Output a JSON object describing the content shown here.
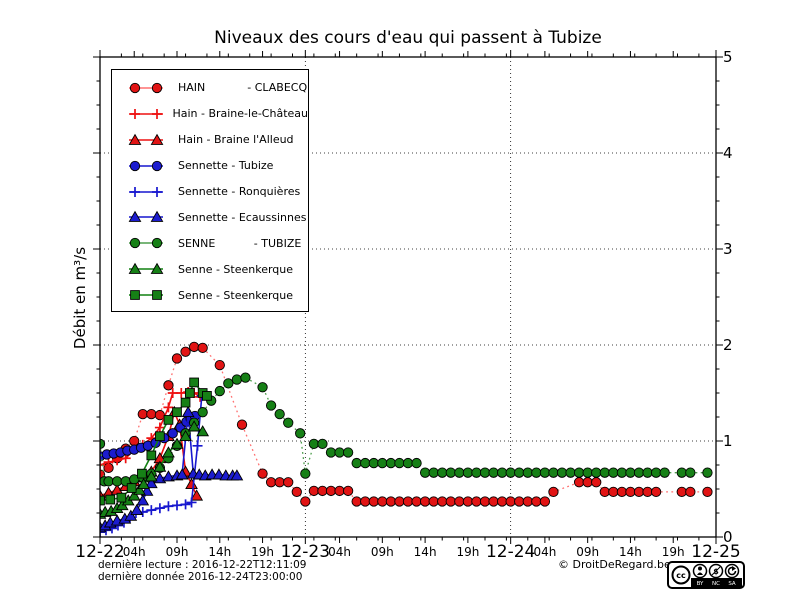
{
  "title": "Niveaux des cours d'eau qui passent à Tubize",
  "ylabel": "Débit en m³/s",
  "footer": {
    "line1": "dernière lecture : 2016-12-22T12:11:09",
    "line2": "dernière donnée  2016-12-24T23:00:00",
    "copyright": "© DroitDeRegard.be",
    "license_icons": [
      "cc-icon",
      "by-person-icon",
      "nc-dollar-icon",
      "sa-arrow-icon"
    ],
    "license_labels": [
      "BY",
      "NC",
      "SA"
    ]
  },
  "colors": {
    "axis": "#000000",
    "grid": "#000000",
    "red_marker": "#e11414",
    "red_line": "#ee1111",
    "red_dotted": "#ff7070",
    "blue_marker": "#1c1ccf",
    "blue_line": "#1717cf",
    "green_marker": "#168016",
    "green_line": "#118011",
    "green_dotted": "#4d9e4d"
  },
  "chart_data": {
    "type": "line",
    "title": "Niveaux des cours d'eau qui passent à Tubize",
    "xlabel": "",
    "ylabel": "Débit en m³/s",
    "x_unit": "hours since 2016-12-22T00:00",
    "xlim": [
      0,
      72
    ],
    "ylim": [
      0,
      5
    ],
    "grid": "dotted",
    "x_gridlines_t": [
      24,
      48
    ],
    "y_gridlines": [
      1,
      2,
      3,
      4
    ],
    "y_ticks": [
      0,
      1,
      2,
      3,
      4,
      5
    ],
    "y_tick_labels": [
      "0",
      "1",
      "2",
      "3",
      "4",
      "5"
    ],
    "y_axis_side": "right",
    "legend_position": "upper-left",
    "day_labels": [
      {
        "t": 0,
        "label": "12-22"
      },
      {
        "t": 24,
        "label": "12-23"
      },
      {
        "t": 48,
        "label": "12-24"
      },
      {
        "t": 72,
        "label": "12-25"
      }
    ],
    "hour_labels": [
      {
        "t": 4,
        "label": "04h"
      },
      {
        "t": 9,
        "label": "09h"
      },
      {
        "t": 14,
        "label": "14h"
      },
      {
        "t": 19,
        "label": "19h"
      },
      {
        "t": 28,
        "label": "04h"
      },
      {
        "t": 33,
        "label": "09h"
      },
      {
        "t": 38,
        "label": "14h"
      },
      {
        "t": 43,
        "label": "19h"
      },
      {
        "t": 52,
        "label": "04h"
      },
      {
        "t": 57,
        "label": "09h"
      },
      {
        "t": 62,
        "label": "14h"
      },
      {
        "t": 67,
        "label": "19h"
      }
    ],
    "series": [
      {
        "name": "HAIN            - CLABECQ",
        "station": "Hain à Clabecq",
        "marker": "circle",
        "marker_color": "#e11414",
        "line_style": "dotted",
        "line_color": "#ff7070",
        "points": [
          [
            0,
            0.65
          ],
          [
            1,
            0.72
          ],
          [
            2,
            0.82
          ],
          [
            3,
            0.92
          ],
          [
            4,
            1.0
          ],
          [
            5,
            1.28
          ],
          [
            6,
            1.28
          ],
          [
            7,
            1.27
          ],
          [
            8,
            1.58
          ],
          [
            9,
            1.86
          ],
          [
            10,
            1.93
          ],
          [
            11,
            1.98
          ],
          [
            12,
            1.97
          ],
          [
            14,
            1.79
          ],
          [
            16.6,
            1.17
          ],
          [
            19,
            0.66
          ],
          [
            20,
            0.57
          ],
          [
            21,
            0.57
          ],
          [
            22,
            0.57
          ],
          [
            23,
            0.47
          ],
          [
            24,
            0.37
          ],
          [
            25,
            0.48
          ],
          [
            26,
            0.48
          ],
          [
            27,
            0.48
          ],
          [
            28,
            0.48
          ],
          [
            29,
            0.48
          ],
          [
            30,
            0.37
          ],
          [
            31,
            0.37
          ],
          [
            32,
            0.37
          ],
          [
            33,
            0.37
          ],
          [
            34,
            0.37
          ],
          [
            35,
            0.37
          ],
          [
            36,
            0.37
          ],
          [
            37,
            0.37
          ],
          [
            38,
            0.37
          ],
          [
            39,
            0.37
          ],
          [
            40,
            0.37
          ],
          [
            41,
            0.37
          ],
          [
            42,
            0.37
          ],
          [
            43,
            0.37
          ],
          [
            44,
            0.37
          ],
          [
            45,
            0.37
          ],
          [
            46,
            0.37
          ],
          [
            47,
            0.37
          ],
          [
            48,
            0.37
          ],
          [
            49,
            0.37
          ],
          [
            50,
            0.37
          ],
          [
            51,
            0.37
          ],
          [
            52,
            0.37
          ],
          [
            53,
            0.47
          ],
          [
            56,
            0.57
          ],
          [
            57,
            0.57
          ],
          [
            58,
            0.57
          ],
          [
            59,
            0.47
          ],
          [
            60,
            0.47
          ],
          [
            61,
            0.47
          ],
          [
            62,
            0.47
          ],
          [
            63,
            0.47
          ],
          [
            64,
            0.47
          ],
          [
            65,
            0.47
          ],
          [
            68,
            0.47
          ],
          [
            69,
            0.47
          ],
          [
            71,
            0.47
          ]
        ]
      },
      {
        "name": "Hain - Braine-le-Château",
        "station": "Hain à Braine-le-Château",
        "marker": "plus",
        "marker_color": "#ee1111",
        "line_style": "solid",
        "line_color": "#ee1111",
        "points": [
          [
            0,
            0.75
          ],
          [
            1,
            0.78
          ],
          [
            2,
            0.8
          ],
          [
            3,
            0.82
          ],
          [
            4,
            0.91
          ],
          [
            5,
            0.96
          ],
          [
            6,
            1.03
          ],
          [
            7,
            1.14
          ],
          [
            8,
            1.35
          ],
          [
            8.5,
            1.5
          ],
          [
            9.5,
            1.5
          ],
          [
            10.3,
            1.51
          ],
          [
            11,
            1.5
          ],
          [
            11.7,
            1.46
          ]
        ]
      },
      {
        "name": "Hain - Braine l'Alleud",
        "station": "Hain à Braine l'Alleud",
        "marker": "triangle",
        "marker_color": "#e11414",
        "line_style": "solid",
        "line_color": "#ee1111",
        "points": [
          [
            0,
            0.43
          ],
          [
            1,
            0.46
          ],
          [
            2,
            0.49
          ],
          [
            3,
            0.53
          ],
          [
            4,
            0.58
          ],
          [
            5,
            0.62
          ],
          [
            6,
            0.68
          ],
          [
            7,
            0.82
          ],
          [
            8,
            1.05
          ],
          [
            8.7,
            1.3
          ],
          [
            9.3,
            1.17
          ],
          [
            10,
            0.68
          ],
          [
            10.7,
            0.55
          ],
          [
            11.3,
            0.43
          ]
        ]
      },
      {
        "name": "Sennette - Tubize",
        "station": "Sennette à Tubize",
        "marker": "circle",
        "marker_color": "#1c1ccf",
        "line_style": "solid",
        "line_color": "#1717cf",
        "points": [
          [
            0,
            0.84
          ],
          [
            0.8,
            0.86
          ],
          [
            1.6,
            0.87
          ],
          [
            2.4,
            0.88
          ],
          [
            3.2,
            0.9
          ],
          [
            4,
            0.91
          ],
          [
            4.8,
            0.93
          ],
          [
            5.6,
            0.95
          ],
          [
            6.5,
            0.98
          ],
          [
            7.5,
            1.03
          ],
          [
            8.5,
            1.08
          ],
          [
            9.4,
            1.14
          ],
          [
            10.1,
            1.2
          ],
          [
            10.6,
            1.23
          ],
          [
            11.1,
            1.26
          ]
        ]
      },
      {
        "name": "Sennette - Ronquières",
        "station": "Sennette à Ronquières",
        "marker": "plus",
        "marker_color": "#1717cf",
        "line_style": "solid",
        "line_color": "#1717cf",
        "points": [
          [
            0,
            0.05
          ],
          [
            0.7,
            0.07
          ],
          [
            1.4,
            0.09
          ],
          [
            2.1,
            0.12
          ],
          [
            2.8,
            0.15
          ],
          [
            3.5,
            0.2
          ],
          [
            4.2,
            0.25
          ],
          [
            5,
            0.26
          ],
          [
            6,
            0.28
          ],
          [
            7,
            0.3
          ],
          [
            8,
            0.32
          ],
          [
            9,
            0.33
          ],
          [
            10,
            0.34
          ],
          [
            10.7,
            0.36
          ],
          [
            11.4,
            0.95
          ],
          [
            11.9,
            1.47
          ]
        ]
      },
      {
        "name": "Sennette - Ecaussinnes",
        "station": "Sennette à Ecaussinnes",
        "marker": "triangle",
        "marker_color": "#1c1ccf",
        "line_style": "solid",
        "line_color": "#1717cf",
        "points": [
          [
            0,
            0.1
          ],
          [
            0.6,
            0.12
          ],
          [
            1.2,
            0.15
          ],
          [
            2,
            0.17
          ],
          [
            2.9,
            0.19
          ],
          [
            3.6,
            0.22
          ],
          [
            4.3,
            0.28
          ],
          [
            5,
            0.38
          ],
          [
            5.5,
            0.48
          ],
          [
            6,
            0.56
          ],
          [
            7,
            0.61
          ],
          [
            8,
            0.63
          ],
          [
            9,
            0.64
          ],
          [
            9.6,
            0.65
          ],
          [
            10.3,
            1.3
          ],
          [
            10.9,
            0.66
          ],
          [
            11.6,
            0.65
          ],
          [
            12.3,
            0.64
          ],
          [
            13.1,
            0.65
          ],
          [
            13.9,
            0.65
          ],
          [
            14.7,
            0.64
          ],
          [
            15.5,
            0.64
          ],
          [
            16,
            0.64
          ]
        ]
      },
      {
        "name": "SENNE           - TUBIZE",
        "station": "Senne à Tubize",
        "marker": "circle",
        "marker_color": "#168016",
        "line_style": "dotted",
        "line_color": "#4d9e4d",
        "points": [
          [
            0,
            0.97
          ],
          [
            0.5,
            0.58
          ],
          [
            1,
            0.58
          ],
          [
            2,
            0.58
          ],
          [
            3,
            0.58
          ],
          [
            4,
            0.6
          ],
          [
            5,
            0.62
          ],
          [
            6,
            0.66
          ],
          [
            7,
            0.72
          ],
          [
            8,
            0.82
          ],
          [
            9,
            0.95
          ],
          [
            10,
            1.08
          ],
          [
            11,
            1.19
          ],
          [
            12,
            1.3
          ],
          [
            13,
            1.42
          ],
          [
            14,
            1.52
          ],
          [
            15,
            1.6
          ],
          [
            16,
            1.64
          ],
          [
            17,
            1.66
          ],
          [
            19,
            1.56
          ],
          [
            20,
            1.37
          ],
          [
            21,
            1.28
          ],
          [
            22,
            1.19
          ],
          [
            23.4,
            1.08
          ],
          [
            24,
            0.66
          ],
          [
            25,
            0.97
          ],
          [
            26,
            0.97
          ],
          [
            27,
            0.88
          ],
          [
            28,
            0.88
          ],
          [
            29,
            0.88
          ],
          [
            30,
            0.77
          ],
          [
            31,
            0.77
          ],
          [
            32,
            0.77
          ],
          [
            33,
            0.77
          ],
          [
            34,
            0.77
          ],
          [
            35,
            0.77
          ],
          [
            36,
            0.77
          ],
          [
            37,
            0.77
          ],
          [
            38,
            0.67
          ],
          [
            39,
            0.67
          ],
          [
            40,
            0.67
          ],
          [
            41,
            0.67
          ],
          [
            42,
            0.67
          ],
          [
            43,
            0.67
          ],
          [
            44,
            0.67
          ],
          [
            45,
            0.67
          ],
          [
            46,
            0.67
          ],
          [
            47,
            0.67
          ],
          [
            48,
            0.67
          ],
          [
            49,
            0.67
          ],
          [
            50,
            0.67
          ],
          [
            51,
            0.67
          ],
          [
            52,
            0.67
          ],
          [
            53,
            0.67
          ],
          [
            54,
            0.67
          ],
          [
            55,
            0.67
          ],
          [
            56,
            0.67
          ],
          [
            57,
            0.67
          ],
          [
            58,
            0.67
          ],
          [
            59,
            0.67
          ],
          [
            60,
            0.67
          ],
          [
            61,
            0.67
          ],
          [
            62,
            0.67
          ],
          [
            63,
            0.67
          ],
          [
            64,
            0.67
          ],
          [
            65,
            0.67
          ],
          [
            66,
            0.67
          ],
          [
            68,
            0.67
          ],
          [
            69,
            0.67
          ],
          [
            71,
            0.67
          ]
        ]
      },
      {
        "name": "Senne - Steenkerque",
        "station": "Senne à Steenkerque",
        "marker": "triangle",
        "marker_color": "#168016",
        "line_style": "solid",
        "line_color": "#118011",
        "points": [
          [
            0,
            0.24
          ],
          [
            0.6,
            0.26
          ],
          [
            1.3,
            0.27
          ],
          [
            2,
            0.3
          ],
          [
            2.6,
            0.33
          ],
          [
            3.3,
            0.38
          ],
          [
            4,
            0.43
          ],
          [
            4.6,
            0.49
          ],
          [
            5.1,
            0.55
          ],
          [
            6,
            0.63
          ],
          [
            7,
            0.73
          ],
          [
            8,
            0.88
          ],
          [
            9,
            0.97
          ],
          [
            10,
            1.05
          ],
          [
            11,
            1.15
          ],
          [
            12,
            1.1
          ]
        ]
      },
      {
        "name": "Senne - Steenkerque",
        "station": "Senne à Steenkerque",
        "marker": "square",
        "marker_color": "#168016",
        "line_style": "solid",
        "line_color": "#118011",
        "points": [
          [
            0,
            0.38
          ],
          [
            1.2,
            0.39
          ],
          [
            2.5,
            0.41
          ],
          [
            3.7,
            0.51
          ],
          [
            4.9,
            0.66
          ],
          [
            6,
            0.85
          ],
          [
            7,
            1.05
          ],
          [
            8,
            1.22
          ],
          [
            9,
            1.3
          ],
          [
            10,
            1.4
          ],
          [
            10.5,
            1.5
          ],
          [
            11,
            1.61
          ],
          [
            12,
            1.5
          ],
          [
            12.5,
            1.47
          ]
        ]
      }
    ]
  }
}
